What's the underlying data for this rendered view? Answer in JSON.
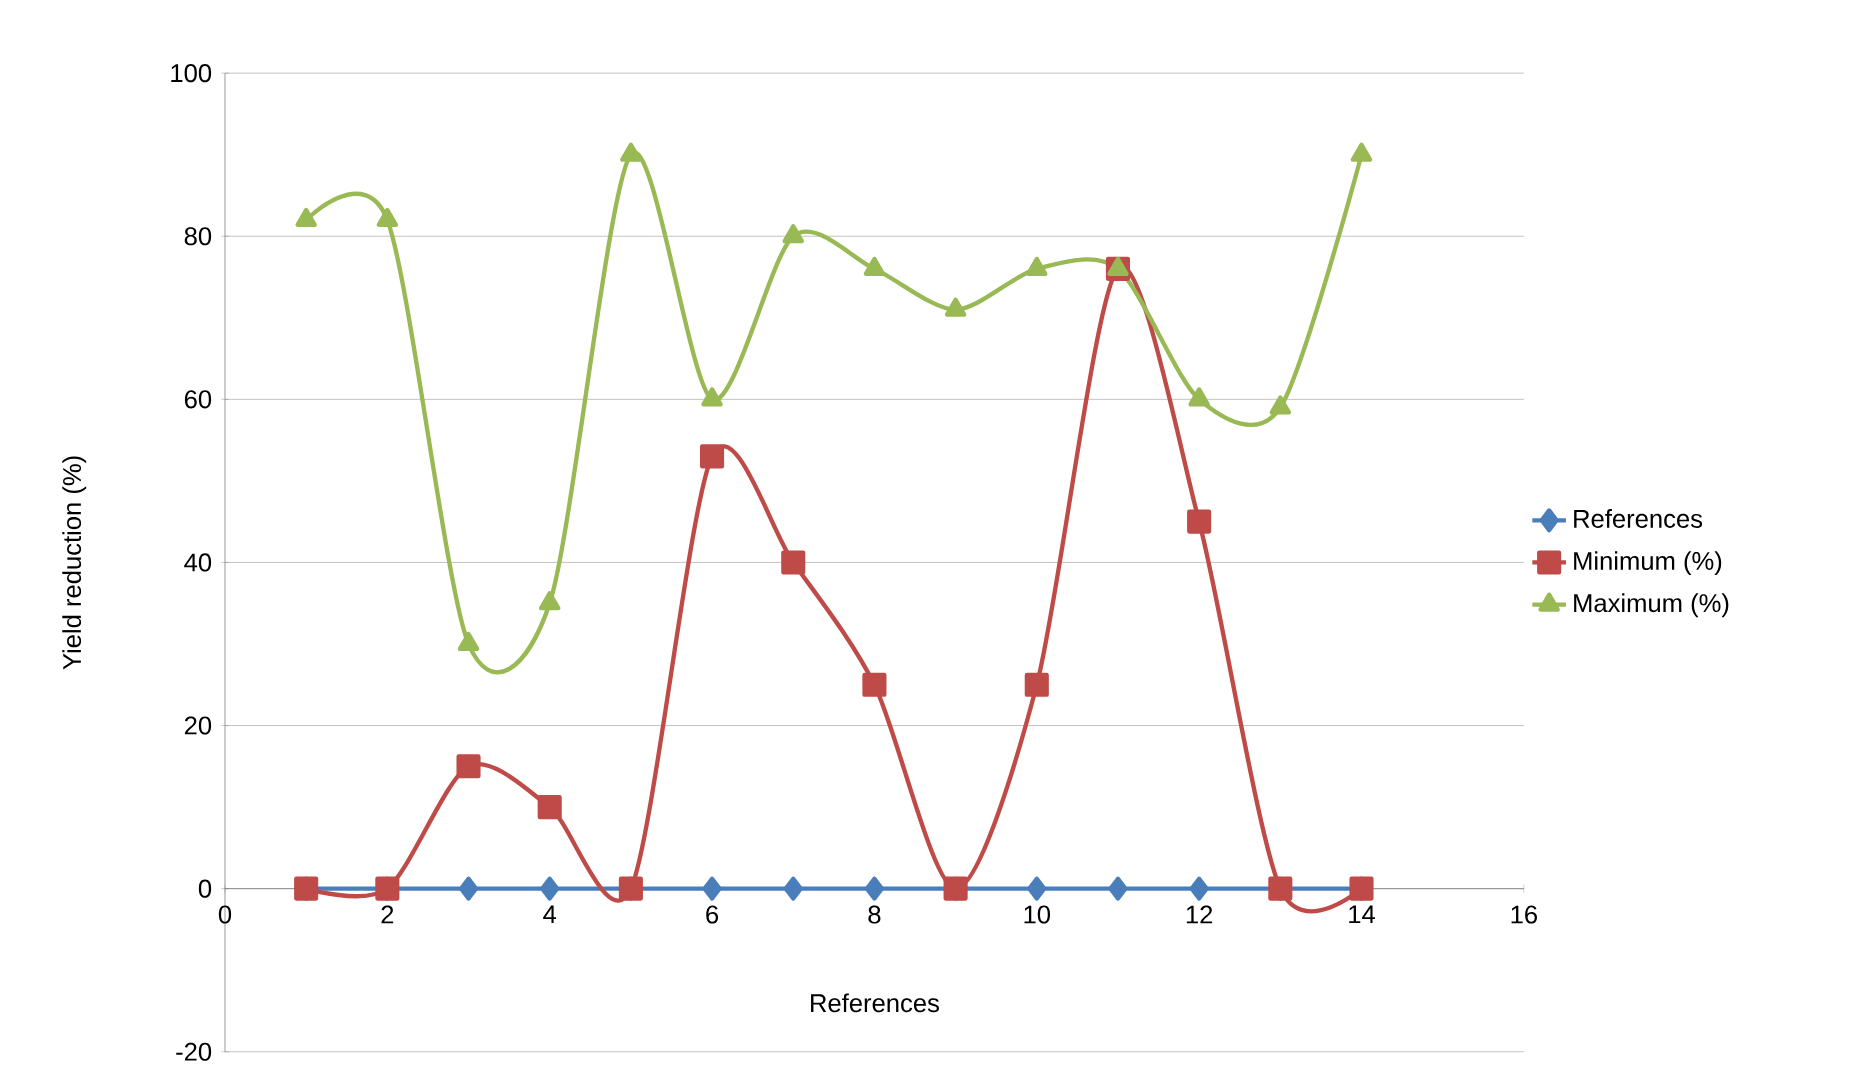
{
  "chart_data": {
    "type": "line",
    "xlabel": "References",
    "ylabel": "Yield reduction (%)",
    "x": [
      1,
      2,
      3,
      4,
      5,
      6,
      7,
      8,
      9,
      10,
      11,
      12,
      13,
      14
    ],
    "series": [
      {
        "name": "References",
        "color": "#4a7ebb",
        "marker": "diamond",
        "values": [
          0,
          0,
          0,
          0,
          0,
          0,
          0,
          0,
          0,
          0,
          0,
          0,
          0,
          0
        ]
      },
      {
        "name": "Minimum (%)",
        "color": "#be4b48",
        "marker": "square",
        "values": [
          0,
          0,
          15,
          10,
          0,
          53,
          40,
          25,
          0,
          25,
          76,
          45,
          0,
          0
        ]
      },
      {
        "name": "Maximum (%)",
        "color": "#98b954",
        "marker": "triangle",
        "values": [
          82,
          82,
          30,
          35,
          90,
          60,
          80,
          76,
          71,
          76,
          76,
          60,
          59,
          90
        ]
      }
    ],
    "xlim": [
      0,
      16
    ],
    "xticks": [
      0,
      2,
      4,
      6,
      8,
      10,
      12,
      14,
      16
    ],
    "ylim": [
      -20,
      100
    ],
    "yticks": [
      -20,
      0,
      20,
      40,
      60,
      80,
      100
    ],
    "grid": "y",
    "legend": "right"
  }
}
